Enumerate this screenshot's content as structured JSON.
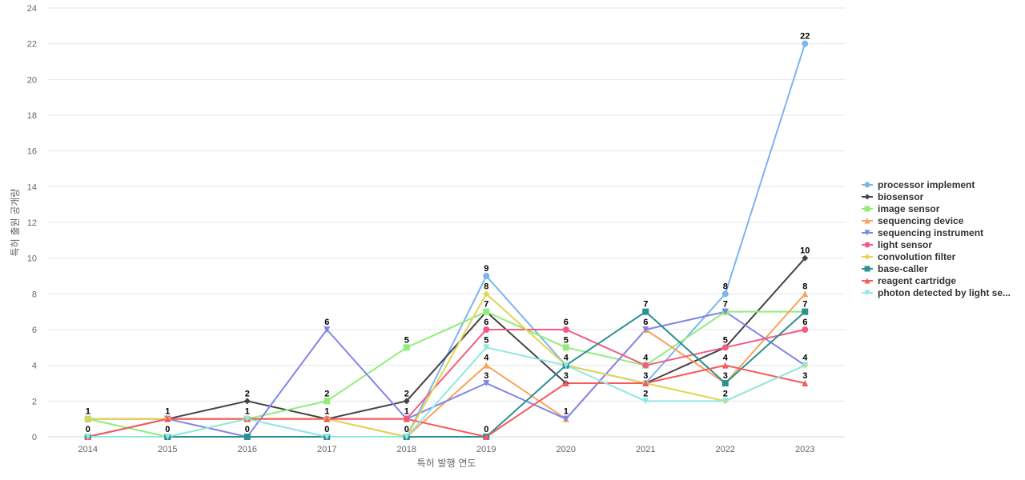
{
  "chart_data": {
    "type": "line",
    "title": "",
    "xlabel": "특허 발행 연도",
    "ylabel": "특허 출원 공개량",
    "categories": [
      "2014",
      "2015",
      "2016",
      "2017",
      "2018",
      "2019",
      "2020",
      "2021",
      "2022",
      "2023"
    ],
    "ylim": [
      0,
      24
    ],
    "y_ticks": [
      0,
      2,
      4,
      6,
      8,
      10,
      12,
      14,
      16,
      18,
      20,
      22,
      24
    ],
    "grid": true,
    "legend_position": "right",
    "series": [
      {
        "name": "processor implement",
        "legend_label": "processor implement",
        "color": "#7cb5ec",
        "marker": "circle",
        "values": [
          0,
          1,
          1,
          0,
          0,
          9,
          4,
          3,
          8,
          22
        ]
      },
      {
        "name": "biosensor",
        "legend_label": "biosensor",
        "color": "#434348",
        "marker": "diamond",
        "values": [
          1,
          1,
          2,
          1,
          2,
          7,
          3,
          3,
          5,
          10
        ]
      },
      {
        "name": "image sensor",
        "legend_label": "image sensor",
        "color": "#90ed7d",
        "marker": "square",
        "values": [
          1,
          0,
          1,
          2,
          5,
          7,
          5,
          4,
          7,
          7
        ]
      },
      {
        "name": "sequencing device",
        "legend_label": "sequencing device",
        "color": "#f7a35c",
        "marker": "triangle",
        "values": [
          1,
          1,
          1,
          1,
          0,
          4,
          1,
          6,
          3,
          8
        ]
      },
      {
        "name": "sequencing instrument",
        "legend_label": "sequencing instrument",
        "color": "#8085e9",
        "marker": "triangle-down",
        "values": [
          0,
          1,
          0,
          6,
          1,
          3,
          1,
          6,
          7,
          4
        ]
      },
      {
        "name": "light sensor",
        "legend_label": "light sensor",
        "color": "#f15c80",
        "marker": "circle",
        "values": [
          0,
          1,
          1,
          1,
          1,
          6,
          6,
          4,
          5,
          6
        ]
      },
      {
        "name": "convolution filter",
        "legend_label": "convolution filter",
        "color": "#e4d354",
        "marker": "diamond",
        "values": [
          1,
          1,
          1,
          1,
          0,
          8,
          4,
          3,
          2,
          4
        ]
      },
      {
        "name": "base-caller",
        "legend_label": "base-caller",
        "color": "#2b908f",
        "marker": "square",
        "values": [
          0,
          0,
          0,
          0,
          0,
          0,
          4,
          7,
          3,
          7
        ]
      },
      {
        "name": "reagent cartridge",
        "legend_label": "reagent cartridge",
        "color": "#f45b5b",
        "marker": "triangle",
        "values": [
          0,
          1,
          1,
          1,
          1,
          0,
          3,
          3,
          4,
          3
        ]
      },
      {
        "name": "photon detected by light se...",
        "legend_label": "photon detected by light se...",
        "color": "#91e8e1",
        "marker": "triangle-down",
        "values": [
          0,
          0,
          1,
          0,
          0,
          5,
          4,
          2,
          2,
          4
        ]
      }
    ],
    "data_labels": [
      {
        "series": 0,
        "index": 0,
        "text": "0"
      },
      {
        "series": 1,
        "index": 0,
        "text": "1"
      },
      {
        "series": 1,
        "index": 1,
        "text": "1"
      },
      {
        "series": 7,
        "index": 1,
        "text": "0"
      },
      {
        "series": 1,
        "index": 2,
        "text": "2"
      },
      {
        "series": 0,
        "index": 2,
        "text": "1"
      },
      {
        "series": 7,
        "index": 2,
        "text": "0"
      },
      {
        "series": 4,
        "index": 3,
        "text": "6"
      },
      {
        "series": 2,
        "index": 3,
        "text": "2"
      },
      {
        "series": 1,
        "index": 3,
        "text": "1"
      },
      {
        "series": 7,
        "index": 3,
        "text": "0"
      },
      {
        "series": 2,
        "index": 4,
        "text": "5"
      },
      {
        "series": 1,
        "index": 4,
        "text": "2"
      },
      {
        "series": 5,
        "index": 4,
        "text": "1"
      },
      {
        "series": 7,
        "index": 4,
        "text": "0"
      },
      {
        "series": 0,
        "index": 5,
        "text": "9"
      },
      {
        "series": 6,
        "index": 5,
        "text": "8"
      },
      {
        "series": 2,
        "index": 5,
        "text": "7"
      },
      {
        "series": 5,
        "index": 5,
        "text": "6"
      },
      {
        "series": 9,
        "index": 5,
        "text": "5"
      },
      {
        "series": 3,
        "index": 5,
        "text": "4"
      },
      {
        "series": 4,
        "index": 5,
        "text": "3"
      },
      {
        "series": 7,
        "index": 5,
        "text": "0"
      },
      {
        "series": 5,
        "index": 6,
        "text": "6"
      },
      {
        "series": 2,
        "index": 6,
        "text": "5"
      },
      {
        "series": 0,
        "index": 6,
        "text": "4"
      },
      {
        "series": 1,
        "index": 6,
        "text": "3"
      },
      {
        "series": 3,
        "index": 6,
        "text": "1"
      },
      {
        "series": 7,
        "index": 7,
        "text": "7"
      },
      {
        "series": 3,
        "index": 7,
        "text": "6"
      },
      {
        "series": 5,
        "index": 7,
        "text": "4"
      },
      {
        "series": 1,
        "index": 7,
        "text": "3"
      },
      {
        "series": 9,
        "index": 7,
        "text": "2"
      },
      {
        "series": 0,
        "index": 8,
        "text": "8"
      },
      {
        "series": 2,
        "index": 8,
        "text": "7"
      },
      {
        "series": 1,
        "index": 8,
        "text": "5"
      },
      {
        "series": 8,
        "index": 8,
        "text": "4"
      },
      {
        "series": 3,
        "index": 8,
        "text": "3"
      },
      {
        "series": 6,
        "index": 8,
        "text": "2"
      },
      {
        "series": 0,
        "index": 9,
        "text": "22"
      },
      {
        "series": 1,
        "index": 9,
        "text": "10"
      },
      {
        "series": 3,
        "index": 9,
        "text": "8"
      },
      {
        "series": 2,
        "index": 9,
        "text": "7"
      },
      {
        "series": 5,
        "index": 9,
        "text": "6"
      },
      {
        "series": 9,
        "index": 9,
        "text": "4"
      },
      {
        "series": 8,
        "index": 9,
        "text": "3"
      }
    ]
  }
}
